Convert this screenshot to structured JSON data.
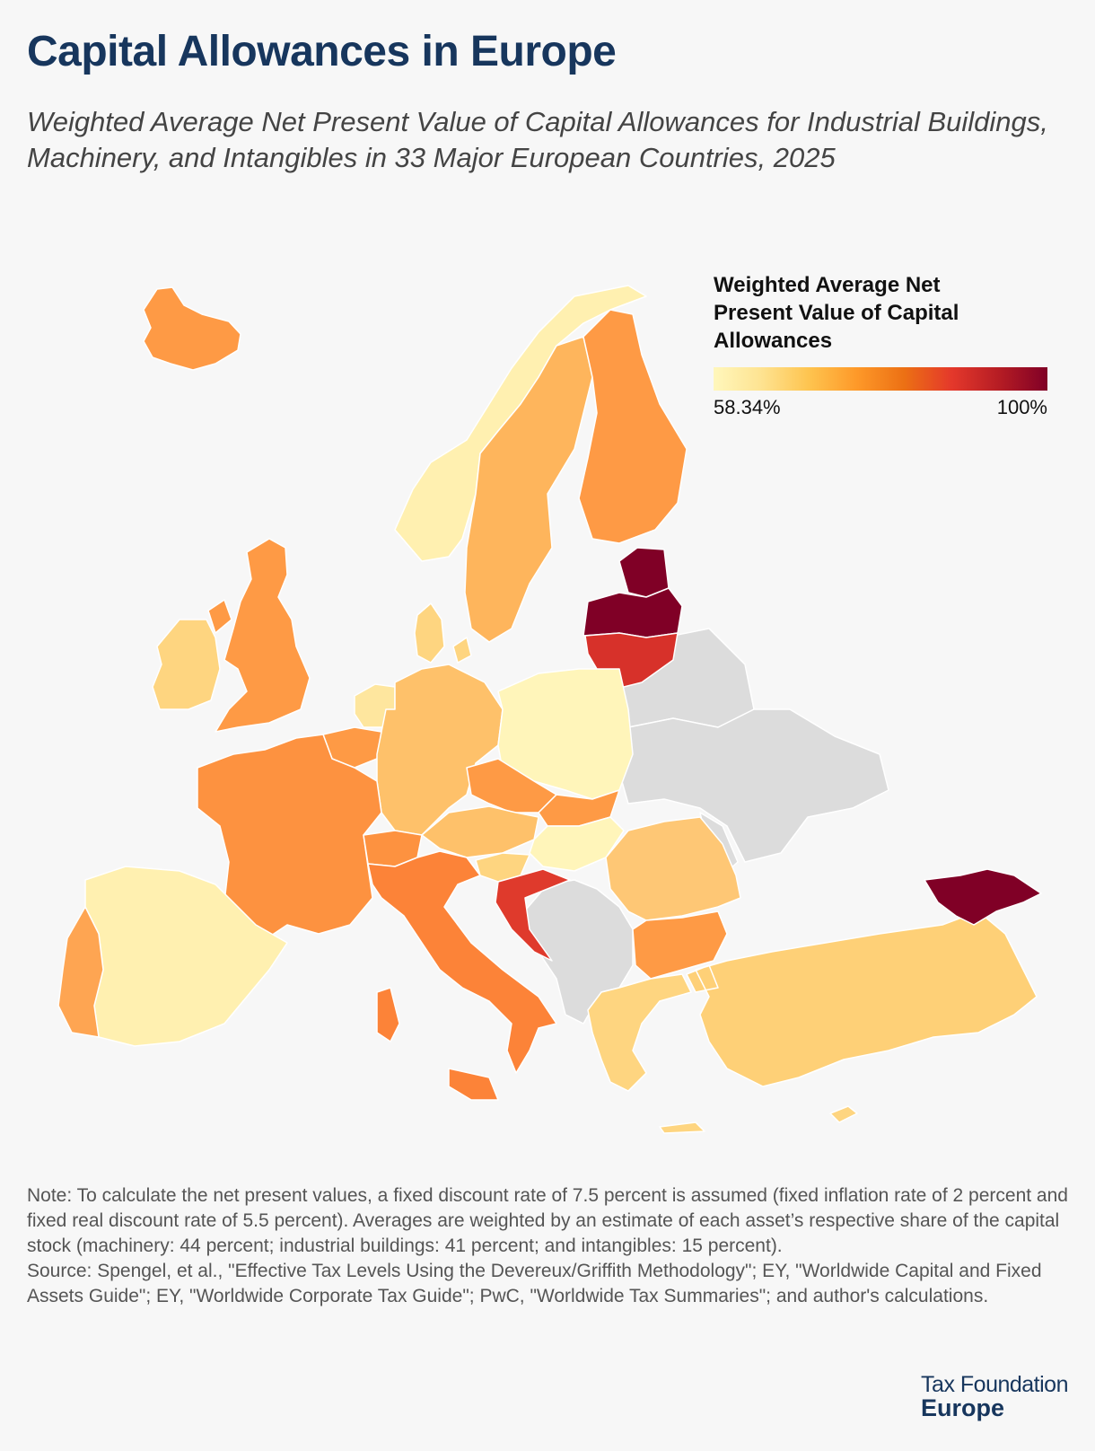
{
  "title": "Capital Allowances in Europe",
  "subtitle": "Weighted Average Net Present Value of Capital Allowances for Industrial Buildings, Machinery, and Intangibles in 33 Major European Countries, 2025",
  "legend": {
    "title": "Weighted Average Net Present Value of Capital Allowances",
    "min_label": "58.34%",
    "max_label": "100%",
    "scale_colors": [
      "#fff7bc",
      "#fee391",
      "#fec44f",
      "#fe9929",
      "#ec7014",
      "#e4382b",
      "#b51c24",
      "#800026"
    ],
    "no_data_color": "#dcdcdc"
  },
  "note": "Note: To calculate the net present values, a fixed discount rate of 7.5 percent is assumed (fixed inflation rate of 2 percent and fixed real discount rate of 5.5 percent). Averages are weighted by an estimate of each asset’s respective share of the capital stock (machinery: 44 percent; industrial buildings: 41 percent; and intangibles: 15 percent).",
  "source": "Source: Spengel, et al., \"Effective Tax Levels Using the Devereux/Griffith Methodology\"; EY, \"Worldwide Capital and Fixed Assets Guide\"; EY, \"Worldwide Corporate Tax Guide\"; PwC, \"Worldwide Tax Summaries\"; and author's calculations.",
  "brand": {
    "line1": "Tax Foundation",
    "line2": "Europe"
  },
  "map_regions": [
    {
      "id": "iceland",
      "fill": "#fe9a45"
    },
    {
      "id": "norway",
      "fill": "#fff0b0"
    },
    {
      "id": "sweden",
      "fill": "#feb55c"
    },
    {
      "id": "finland",
      "fill": "#fe9a45"
    },
    {
      "id": "estonia",
      "fill": "#800026"
    },
    {
      "id": "latvia",
      "fill": "#800026"
    },
    {
      "id": "lithuania",
      "fill": "#d7312a"
    },
    {
      "id": "denmark",
      "fill": "#fed580"
    },
    {
      "id": "ireland",
      "fill": "#fed580"
    },
    {
      "id": "united-kingdom",
      "fill": "#fe9a45"
    },
    {
      "id": "netherlands",
      "fill": "#fee69e"
    },
    {
      "id": "belgium",
      "fill": "#fe9a45"
    },
    {
      "id": "germany",
      "fill": "#fec16a"
    },
    {
      "id": "poland",
      "fill": "#fff5ba"
    },
    {
      "id": "france",
      "fill": "#fd9240"
    },
    {
      "id": "czechia",
      "fill": "#fe9a45"
    },
    {
      "id": "slovakia",
      "fill": "#fe9a45"
    },
    {
      "id": "austria",
      "fill": "#fec16a"
    },
    {
      "id": "switzerland",
      "fill": "#fd9240"
    },
    {
      "id": "hungary",
      "fill": "#fff5ba"
    },
    {
      "id": "slovenia",
      "fill": "#fed580"
    },
    {
      "id": "croatia",
      "fill": "#df3a2c"
    },
    {
      "id": "romania",
      "fill": "#fec775"
    },
    {
      "id": "bulgaria",
      "fill": "#fe9a45"
    },
    {
      "id": "italy",
      "fill": "#fc8338"
    },
    {
      "id": "spain",
      "fill": "#fff0b0"
    },
    {
      "id": "portugal",
      "fill": "#fea552"
    },
    {
      "id": "greece",
      "fill": "#fed580"
    },
    {
      "id": "turkey",
      "fill": "#fed077"
    },
    {
      "id": "georgia",
      "fill": "#800026"
    },
    {
      "id": "cyprus",
      "fill": "#fed580"
    },
    {
      "id": "ukraine",
      "fill": "#dcdcdc"
    },
    {
      "id": "belarus",
      "fill": "#dcdcdc"
    },
    {
      "id": "balkans",
      "fill": "#dcdcdc"
    },
    {
      "id": "moldova",
      "fill": "#dcdcdc"
    }
  ]
}
